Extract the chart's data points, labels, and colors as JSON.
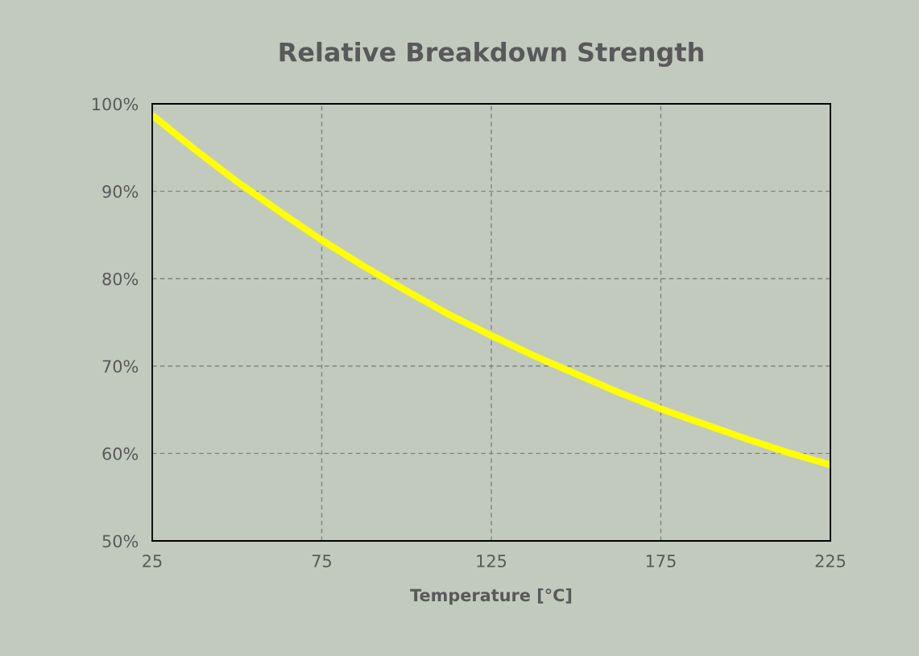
{
  "chart_data": {
    "type": "line",
    "title": "Relative Breakdown Strength",
    "xlabel": "Temperature [°C]",
    "x": [
      25,
      37.5,
      50,
      62.5,
      75,
      87.5,
      100,
      112.5,
      125,
      137.5,
      150,
      162.5,
      175,
      187.5,
      200,
      212.5,
      225
    ],
    "series": [
      {
        "color": "#ffff00",
        "values": [
          98.7,
          94.8,
          91.1,
          87.7,
          84.4,
          81.4,
          78.6,
          75.9,
          73.5,
          71.2,
          69.1,
          67.0,
          65.1,
          63.4,
          61.7,
          60.1,
          58.7
        ]
      }
    ],
    "xlim": [
      25,
      225
    ],
    "xticks": [
      25,
      75,
      125,
      175,
      225
    ],
    "ylim": [
      50,
      100
    ],
    "yticks": [
      {
        "value": 50,
        "label": "50%"
      },
      {
        "value": 60,
        "label": "60%"
      },
      {
        "value": 70,
        "label": "70%"
      },
      {
        "value": 80,
        "label": "80%"
      },
      {
        "value": 90,
        "label": "90%"
      },
      {
        "value": 100,
        "label": "100%"
      }
    ],
    "grid": true,
    "marker": "none",
    "line_style": "solid"
  }
}
